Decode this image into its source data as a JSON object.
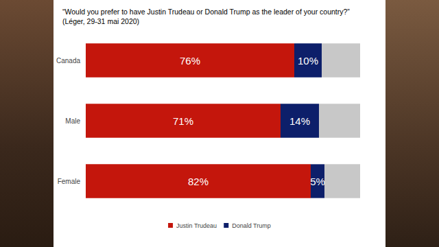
{
  "chart_data": {
    "type": "bar",
    "title": "“Would you prefer to have Justin Trudeau or Donald Trump as the leader of your country?”",
    "subtitle": "(Léger, 29-31 mai 2020)",
    "orientation": "horizontal",
    "stacked": true,
    "data_labels": true,
    "tick_labels": "y",
    "grid": false,
    "legend": "bottom",
    "categories": [
      "Canada",
      "Male",
      "Female"
    ],
    "xlim": [
      0,
      100
    ],
    "series": [
      {
        "name": "Justin Trudeau",
        "color": "#c4160c",
        "values": [
          76,
          71,
          82
        ],
        "value_labels": [
          "76%",
          "71%",
          "82%"
        ]
      },
      {
        "name": "Donald Trump",
        "color": "#0d1f6a",
        "values": [
          10,
          14,
          5
        ],
        "value_labels": [
          "10%",
          "14%",
          "5%"
        ]
      },
      {
        "color": "#c8c8c8",
        "values": [
          14,
          15,
          13
        ]
      }
    ]
  }
}
